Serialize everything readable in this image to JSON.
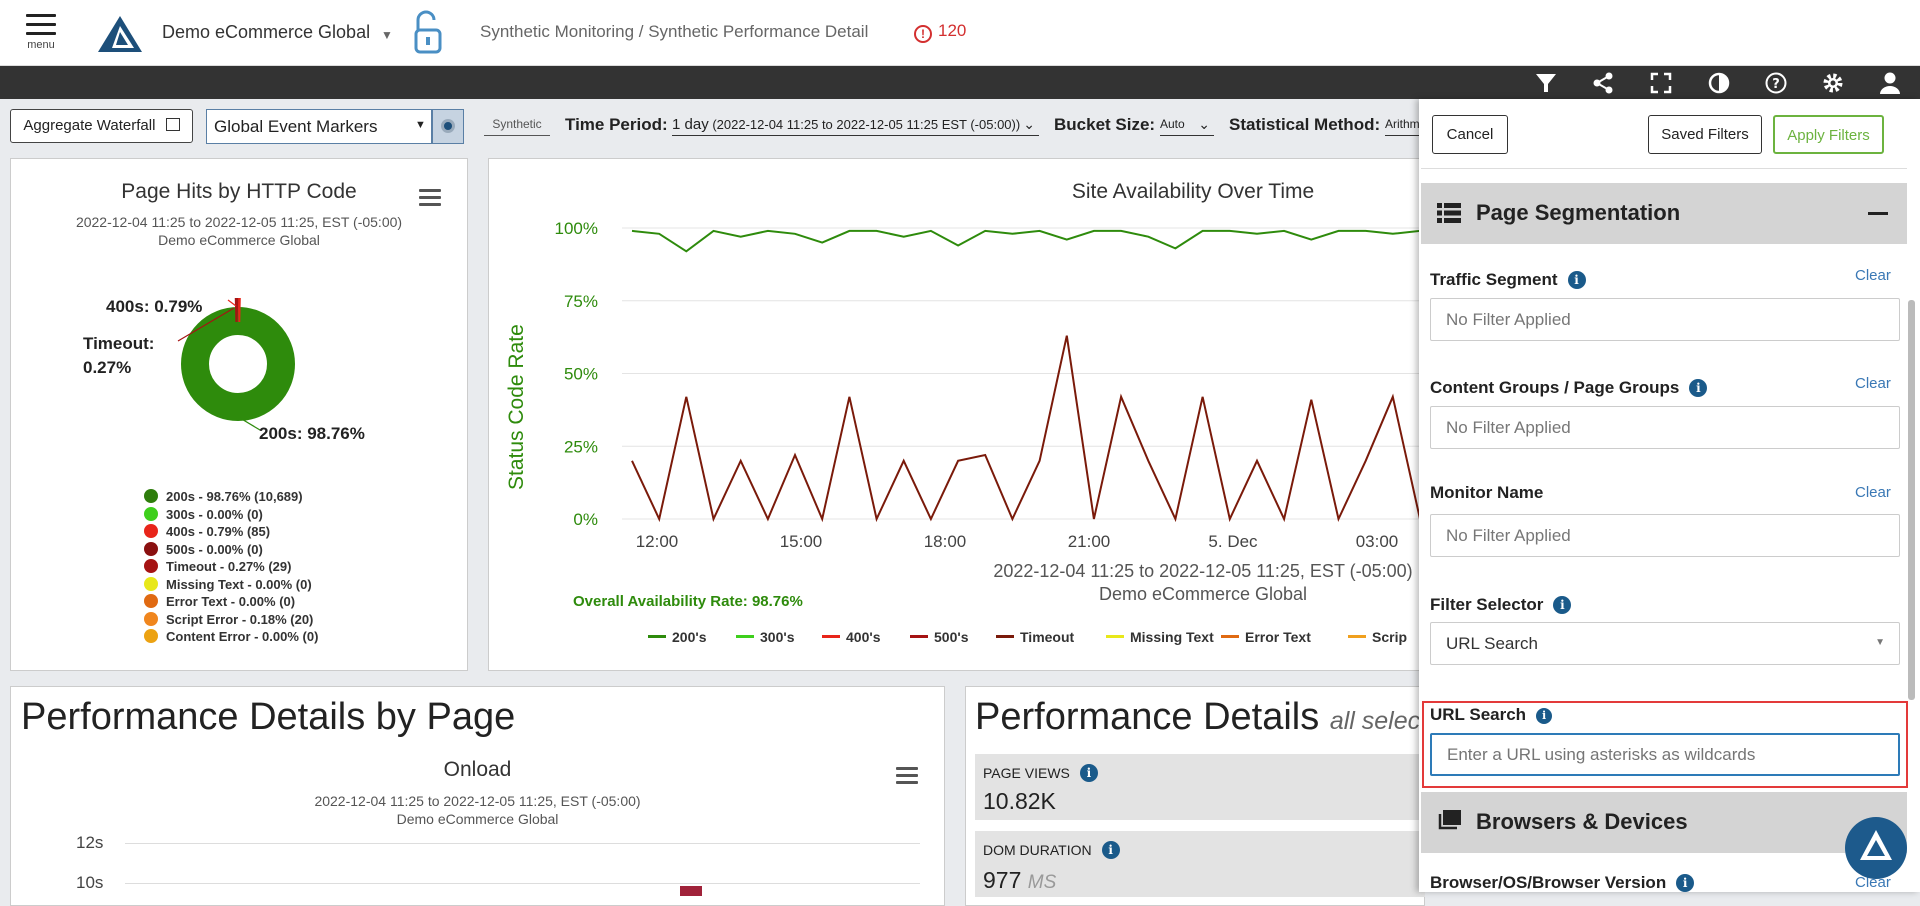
{
  "header": {
    "menu_label": "menu",
    "org_name": "Demo eCommerce Global",
    "breadcrumb": "Synthetic Monitoring / Synthetic Performance Detail",
    "alert_count": "120"
  },
  "toolbar": {
    "aggregate_waterfall": "Aggregate Waterfall",
    "event_markers": "Global Event Markers",
    "synthetic_tab": "Synthetic",
    "time_period_label": "Time Period:",
    "time_period_value": "1 day",
    "time_period_range": "(2022-12-04 11:25 to 2022-12-05 11:25 EST (-05:00))",
    "bucket_size_label": "Bucket Size:",
    "bucket_size_value": "Auto",
    "stat_method_label": "Statistical Method:",
    "stat_method_value": "Arithm"
  },
  "dark_icons": [
    "filter-icon",
    "share-icon",
    "fullscreen-icon",
    "contrast-icon",
    "help-icon",
    "settings-icon",
    "user-icon"
  ],
  "pie_card": {
    "title": "Page Hits by HTTP Code",
    "range": "2022-12-04 11:25 to 2022-12-05 11:25, EST (-05:00)",
    "org": "Demo eCommerce Global",
    "label_400": "400s: 0.79%",
    "label_timeout_1": "Timeout:",
    "label_timeout_2": "0.27%",
    "label_200": "200s: 98.76%",
    "legend": [
      {
        "text": "200s - 98.76% (10,689)",
        "color": "#2e7d0c"
      },
      {
        "text": "300s - 0.00% (0)",
        "color": "#3ecf1c"
      },
      {
        "text": "400s - 0.79% (85)",
        "color": "#e8251a"
      },
      {
        "text": "500s - 0.00% (0)",
        "color": "#8a1010"
      },
      {
        "text": "Timeout - 0.27% (29)",
        "color": "#a51313"
      },
      {
        "text": "Missing Text - 0.00% (0)",
        "color": "#e8e81a"
      },
      {
        "text": "Error Text - 0.00% (0)",
        "color": "#e06a12"
      },
      {
        "text": "Script Error - 0.18% (20)",
        "color": "#f0861e"
      },
      {
        "text": "Content Error - 0.00% (0)",
        "color": "#eca212"
      }
    ]
  },
  "avail_card": {
    "title": "Site Availability Over Time",
    "ylabel": "Status Code Rate",
    "yticks": [
      "100%",
      "75%",
      "50%",
      "25%",
      "0%"
    ],
    "xticks": [
      "12:00",
      "15:00",
      "18:00",
      "21:00",
      "5. Dec",
      "03:00"
    ],
    "range": "2022-12-04 11:25 to 2022-12-05 11:25, EST (-05:00)",
    "org": "Demo eCommerce Global",
    "overall": "Overall Availability Rate: 98.76%",
    "legend": [
      {
        "name": "200's",
        "color": "#2e8b0c"
      },
      {
        "name": "300's",
        "color": "#3ecf1c"
      },
      {
        "name": "400's",
        "color": "#e8251a"
      },
      {
        "name": "500's",
        "color": "#a51313"
      },
      {
        "name": "Timeout",
        "color": "#7a1a0a"
      },
      {
        "name": "Missing Text",
        "color": "#e8e81a"
      },
      {
        "name": "Error Text",
        "color": "#e06a12"
      },
      {
        "name": "Scrip",
        "color": "#f0a01e"
      }
    ]
  },
  "chart_data": {
    "type": "line",
    "title": "Site Availability Over Time",
    "ylabel": "Status Code Rate",
    "ylim": [
      0,
      100
    ],
    "x_ticks": [
      "12:00",
      "15:00",
      "18:00",
      "21:00",
      "5. Dec",
      "03:00"
    ],
    "series": [
      {
        "name": "200's",
        "values": [
          99,
          98,
          92,
          99,
          97,
          99,
          98,
          95,
          99,
          99,
          97,
          99,
          94,
          99,
          98,
          99,
          96,
          99,
          99,
          97,
          93,
          99,
          99,
          98,
          99,
          96,
          99,
          99,
          98,
          99
        ]
      },
      {
        "name": "Timeout",
        "values": [
          20,
          0,
          42,
          0,
          20,
          0,
          22,
          0,
          42,
          0,
          20,
          0,
          20,
          22,
          0,
          20,
          63,
          0,
          42,
          20,
          0,
          42,
          0,
          20,
          0,
          41,
          0,
          20,
          42,
          0
        ]
      }
    ]
  },
  "perf_page_card": {
    "title": "Performance Details by Page",
    "chart_title": "Onload",
    "range": "2022-12-04 11:25 to 2022-12-05 11:25, EST (-05:00)",
    "org": "Demo eCommerce Global",
    "yticks": [
      "12s",
      "10s"
    ]
  },
  "perf_card": {
    "title": "Performance Details",
    "subtitle": "all select",
    "metrics": [
      {
        "label": "PAGE VIEWS",
        "value": "10.82K",
        "unit": ""
      },
      {
        "label": "DOM DURATION",
        "value": "977",
        "unit": "MS"
      }
    ]
  },
  "panel": {
    "cancel": "Cancel",
    "saved_filters": "Saved Filters",
    "apply_filters": "Apply Filters",
    "section1": "Page Segmentation",
    "traffic_segment": {
      "label": "Traffic Segment",
      "clear": "Clear",
      "value": "No Filter Applied"
    },
    "content_groups": {
      "label": "Content Groups / Page Groups",
      "clear": "Clear",
      "value": "No Filter Applied"
    },
    "monitor_name": {
      "label": "Monitor Name",
      "clear": "Clear",
      "value": "No Filter Applied"
    },
    "filter_selector": {
      "label": "Filter Selector",
      "value": "URL Search"
    },
    "url_search": {
      "label": "URL Search",
      "placeholder": "Enter a URL using asterisks as wildcards"
    },
    "section2": "Browsers & Devices",
    "browser_version": {
      "label": "Browser/OS/Browser Version",
      "clear": "Clear"
    }
  }
}
